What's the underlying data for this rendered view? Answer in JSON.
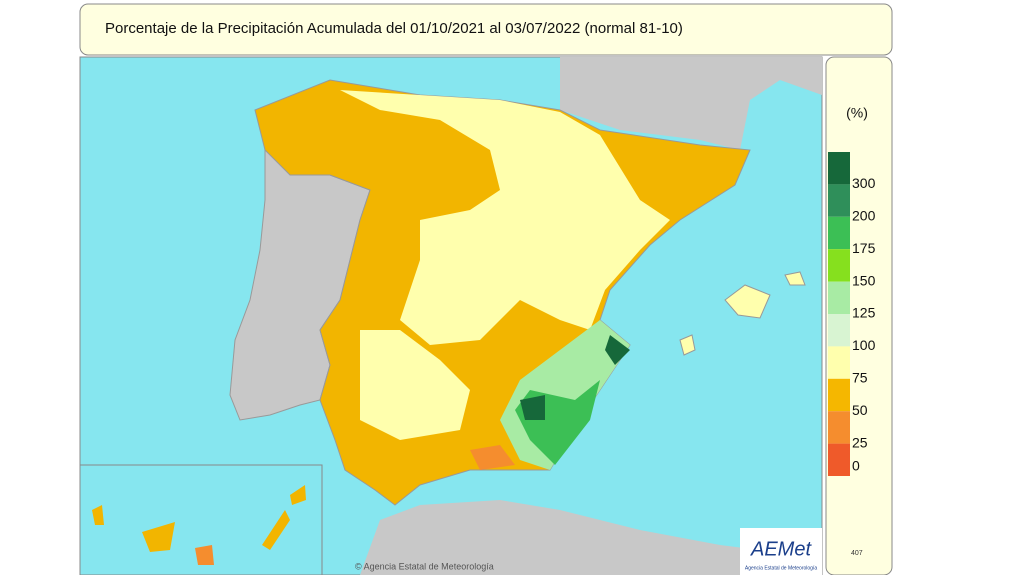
{
  "header": {
    "title": "Porcentaje de la Precipitación Acumulada  del 01/10/2021 al 03/07/2022  (normal 81-10)"
  },
  "legend": {
    "unit": "(%)",
    "items": [
      {
        "label": "300",
        "color": "#16683a"
      },
      {
        "label": "200",
        "color": "#2f8f5a"
      },
      {
        "label": "175",
        "color": "#3cbf55"
      },
      {
        "label": "150",
        "color": "#86e01e"
      },
      {
        "label": "125",
        "color": "#a8eba4"
      },
      {
        "label": "100",
        "color": "#d8f4d2"
      },
      {
        "label": "75",
        "color": "#ffffad"
      },
      {
        "label": "50",
        "color": "#f5b700"
      },
      {
        "label": "25",
        "color": "#f58d2e"
      },
      {
        "label": "0",
        "color": "#ef5a2a"
      }
    ]
  },
  "footer": {
    "copyright": "© Agencia Estatal de Meteorología",
    "logo": "AEMet",
    "logo_subtitle": "Agencia Estatal de Meteorología",
    "code": "407"
  }
}
